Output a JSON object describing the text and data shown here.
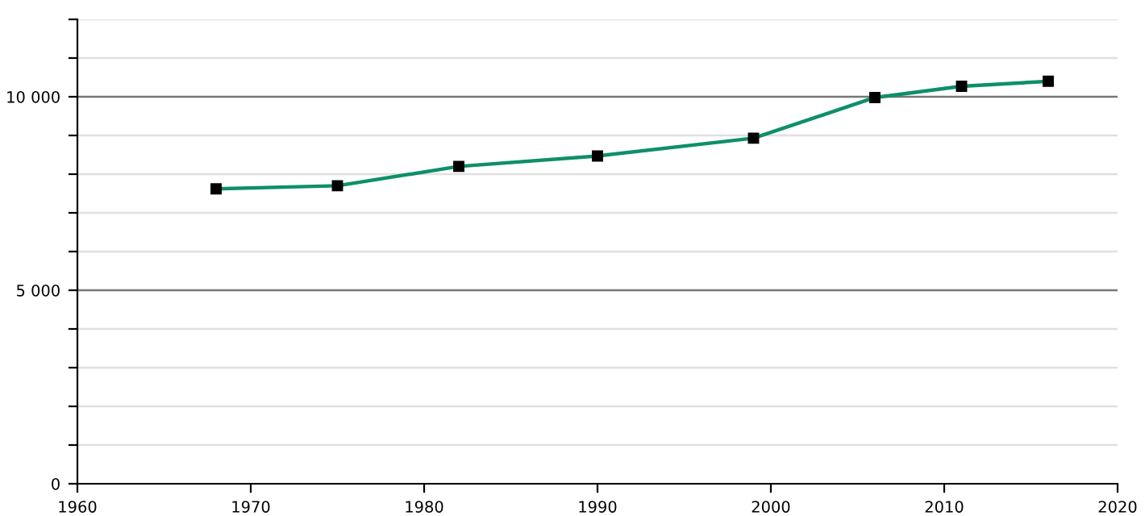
{
  "chart_data": {
    "type": "line",
    "x": [
      1968,
      1975,
      1982,
      1990,
      1999,
      2006,
      2011,
      2016
    ],
    "series": [
      {
        "color": "#0e8f6a",
        "values": [
          7620,
          7700,
          8200,
          8470,
          8930,
          9980,
          10270,
          10400
        ]
      }
    ],
    "marker": "square",
    "xlim": [
      1960,
      2020
    ],
    "xticks": [
      1960,
      1970,
      1980,
      1990,
      2000,
      2010,
      2020
    ],
    "ylim": [
      0,
      12000
    ],
    "yticks": [
      {
        "value": 0,
        "label": "0"
      },
      {
        "value": 1000,
        "label": null
      },
      {
        "value": 2000,
        "label": null
      },
      {
        "value": 3000,
        "label": null
      },
      {
        "value": 4000,
        "label": null
      },
      {
        "value": 5000,
        "label": "5 000"
      },
      {
        "value": 6000,
        "label": null
      },
      {
        "value": 7000,
        "label": null
      },
      {
        "value": 8000,
        "label": null
      },
      {
        "value": 9000,
        "label": null
      },
      {
        "value": 10000,
        "label": "10 000"
      },
      {
        "value": 11000,
        "label": null
      },
      {
        "value": 12000,
        "label": null
      }
    ],
    "grid": "y"
  }
}
